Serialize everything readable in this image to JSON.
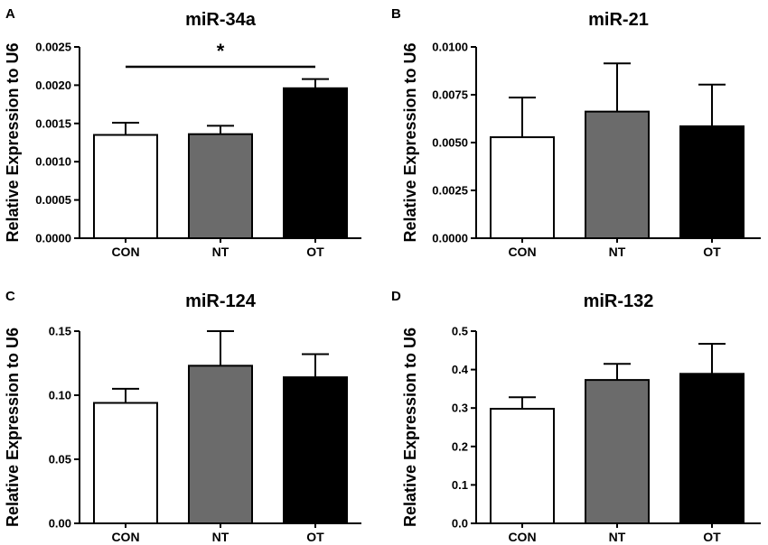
{
  "chart_data": [
    {
      "panel": "A",
      "type": "bar",
      "title": "miR-34a",
      "ylabel": "Relative Expression to U6",
      "categories": [
        "CON",
        "NT",
        "OT"
      ],
      "values": [
        0.00135,
        0.00136,
        0.00196
      ],
      "errors": [
        0.00016,
        0.00011,
        0.00012
      ],
      "bar_colors": [
        "#ffffff",
        "#6b6b6b",
        "#000000"
      ],
      "ylim": [
        0,
        0.0025
      ],
      "yticks": [
        "0.0000",
        "0.0005",
        "0.0010",
        "0.0015",
        "0.0020",
        "0.0025"
      ],
      "significance": {
        "from": "CON",
        "to": "OT",
        "y": 0.00224,
        "label": "*"
      }
    },
    {
      "panel": "B",
      "type": "bar",
      "title": "miR-21",
      "ylabel": "Relative Expression to U6",
      "categories": [
        "CON",
        "NT",
        "OT"
      ],
      "values": [
        0.00528,
        0.00662,
        0.00585
      ],
      "errors": [
        0.00207,
        0.00252,
        0.00218
      ],
      "bar_colors": [
        "#ffffff",
        "#6b6b6b",
        "#000000"
      ],
      "ylim": [
        0,
        0.01
      ],
      "yticks": [
        "0.0000",
        "0.0025",
        "0.0050",
        "0.0075",
        "0.0100"
      ]
    },
    {
      "panel": "C",
      "type": "bar",
      "title": "miR-124",
      "ylabel": "Relative Expression to U6",
      "categories": [
        "CON",
        "NT",
        "OT"
      ],
      "values": [
        0.094,
        0.123,
        0.114
      ],
      "errors": [
        0.011,
        0.027,
        0.018
      ],
      "bar_colors": [
        "#ffffff",
        "#6b6b6b",
        "#000000"
      ],
      "ylim": [
        0,
        0.15
      ],
      "yticks": [
        "0.00",
        "0.05",
        "0.10",
        "0.15"
      ]
    },
    {
      "panel": "D",
      "type": "bar",
      "title": "miR-132",
      "ylabel": "Relative Expression to U6",
      "categories": [
        "CON",
        "NT",
        "OT"
      ],
      "values": [
        0.298,
        0.373,
        0.389
      ],
      "errors": [
        0.03,
        0.042,
        0.078
      ],
      "bar_colors": [
        "#ffffff",
        "#6b6b6b",
        "#000000"
      ],
      "ylim": [
        0,
        0.5
      ],
      "yticks": [
        "0.0",
        "0.1",
        "0.2",
        "0.3",
        "0.4",
        "0.5"
      ]
    }
  ]
}
